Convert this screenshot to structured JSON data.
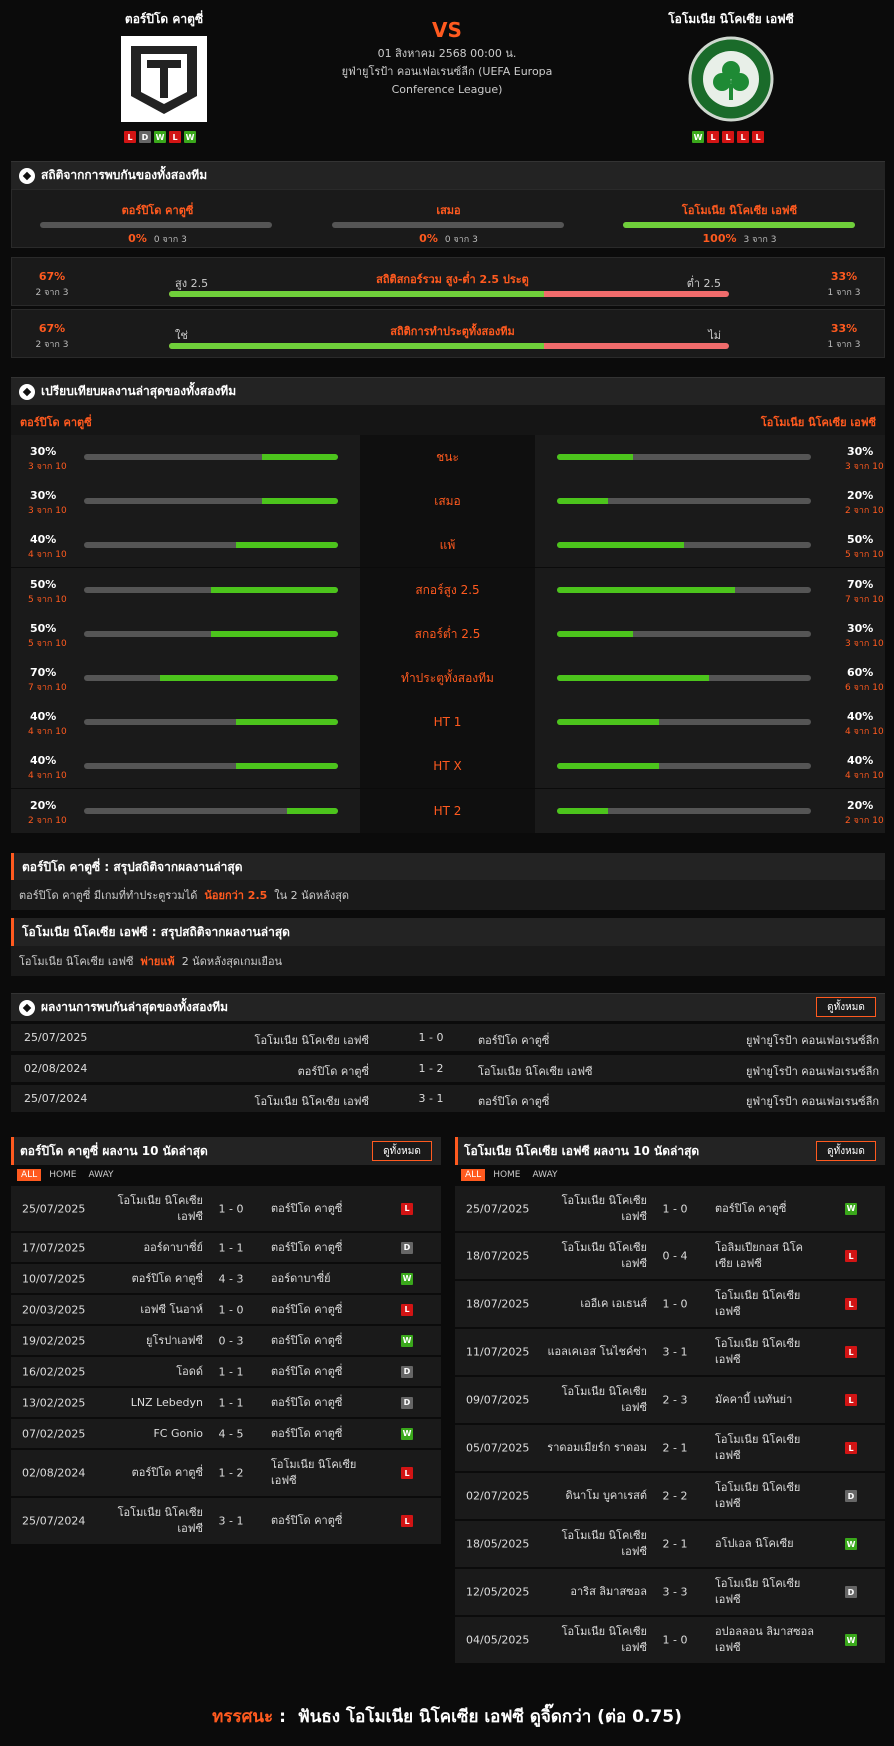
{
  "header": {
    "home_name": "ตอร์ปิโด คาตูซี่",
    "away_name": "โอโมเนีย นิโคเซีย เอฟซี",
    "vs": "VS",
    "date": "01 สิงหาคม 2568 00:00 น.",
    "league": "ยูฟ่ายูโรป้า คอนเฟอเรนซ์ลีก (UEFA Europa Conference League)",
    "home_form": [
      "L",
      "D",
      "W",
      "L",
      "W"
    ],
    "away_form": [
      "W",
      "L",
      "L",
      "L",
      "L"
    ]
  },
  "h2h_stats": {
    "title": "สถิติจากการพบกันของทั้งสองทีม",
    "cols": [
      {
        "label": "ตอร์ปิโด คาตูซี่",
        "pct": "0%",
        "count": "0 จาก 3",
        "fill": 0
      },
      {
        "label": "เสมอ",
        "pct": "0%",
        "count": "0 จาก 3",
        "fill": 0
      },
      {
        "label": "โอโมเนีย นิโคเซีย เอฟซี",
        "pct": "100%",
        "count": "3 จาก 3",
        "fill": 1
      }
    ],
    "ou": {
      "title": "สถิติสกอร์รวม สูง-ต่ำ 2.5 ประตู",
      "left_pct": "67%",
      "left_cnt": "2 จาก 3",
      "right_pct": "33%",
      "right_cnt": "1 จาก 3",
      "left_label": "สูง 2.5",
      "right_label": "ต่ำ 2.5",
      "fill": 0.67
    },
    "btts": {
      "title": "สถิติการทำประตูทั้งสองทีม",
      "left_pct": "67%",
      "left_cnt": "2 จาก 3",
      "right_pct": "33%",
      "right_cnt": "1 จาก 3",
      "left_label": "ใช่",
      "right_label": "ไม่",
      "fill": 0.67
    }
  },
  "compare": {
    "title": "เปรียบเทียบผลงานล่าสุดของทั้งสองทีม",
    "home": "ตอร์ปิโด คาตูซี่",
    "away": "โอโมเนีย นิโคเซีย เอฟซี",
    "rows": [
      {
        "label": "ชนะ",
        "hp": "30%",
        "hc": "3 จาก 10",
        "hf": 0.3,
        "ap": "30%",
        "ac": "3 จาก 10",
        "af": 0.3
      },
      {
        "label": "เสมอ",
        "hp": "30%",
        "hc": "3 จาก 10",
        "hf": 0.3,
        "ap": "20%",
        "ac": "2 จาก 10",
        "af": 0.2
      },
      {
        "label": "แพ้",
        "hp": "40%",
        "hc": "4 จาก 10",
        "hf": 0.4,
        "ap": "50%",
        "ac": "5 จาก 10",
        "af": 0.5
      },
      {
        "label": "สกอร์สูง 2.5",
        "hp": "50%",
        "hc": "5 จาก 10",
        "hf": 0.5,
        "ap": "70%",
        "ac": "7 จาก 10",
        "af": 0.7
      },
      {
        "label": "สกอร์ต่ำ 2.5",
        "hp": "50%",
        "hc": "5 จาก 10",
        "hf": 0.5,
        "ap": "30%",
        "ac": "3 จาก 10",
        "af": 0.3
      },
      {
        "label": "ทำประตูทั้งสองทีม",
        "hp": "70%",
        "hc": "7 จาก 10",
        "hf": 0.7,
        "ap": "60%",
        "ac": "6 จาก 10",
        "af": 0.6
      },
      {
        "label": "HT 1",
        "hp": "40%",
        "hc": "4 จาก 10",
        "hf": 0.4,
        "ap": "40%",
        "ac": "4 จาก 10",
        "af": 0.4
      },
      {
        "label": "HT X",
        "hp": "40%",
        "hc": "4 จาก 10",
        "hf": 0.4,
        "ap": "40%",
        "ac": "4 จาก 10",
        "af": 0.4
      },
      {
        "label": "HT 2",
        "hp": "20%",
        "hc": "2 จาก 10",
        "hf": 0.2,
        "ap": "20%",
        "ac": "2 จาก 10",
        "af": 0.2
      }
    ]
  },
  "summary": [
    {
      "title": "ตอร์ปิโด คาตูซี่ : สรุปสถิติจากผลงานล่าสุด",
      "pre": "ตอร์ปิโด คาตูซี่ มีเกมที่ทำประตูรวมได้",
      "hl": "น้อยกว่า 2.5",
      "post": "ใน 2 นัดหลังสุด"
    },
    {
      "title": "โอโมเนีย นิโคเซีย เอฟซี : สรุปสถิติจากผลงานล่าสุด",
      "pre": "โอโมเนีย นิโคเซีย เอฟซี",
      "hl": "พ่ายแพ้",
      "post": "2 นัดหลังสุดเกมเยือน"
    }
  ],
  "h2h_results": {
    "title": "ผลงานการพบกันล่าสุดของทั้งสองทีม",
    "view_all": "ดูทั้งหมด",
    "rows": [
      {
        "date": "25/07/2025",
        "home": "โอโมเนีย นิโคเซีย เอฟซี",
        "score": "1 - 0",
        "away": "ตอร์ปิโด คาตูซี่",
        "league": "ยูฟ่ายูโรป้า คอนเฟอเรนซ์ลีก"
      },
      {
        "date": "02/08/2024",
        "home": "ตอร์ปิโด คาตูซี่",
        "score": "1 - 2",
        "away": "โอโมเนีย นิโคเซีย เอฟซี",
        "league": "ยูฟ่ายูโรป้า คอนเฟอเรนซ์ลีก"
      },
      {
        "date": "25/07/2024",
        "home": "โอโมเนีย นิโคเซีย เอฟซี",
        "score": "3 - 1",
        "away": "ตอร์ปิโด คาตูซี่",
        "league": "ยูฟ่ายูโรป้า คอนเฟอเรนซ์ลีก"
      }
    ]
  },
  "home_last": {
    "title": "ตอร์ปิโด คาตูซี่ ผลงาน 10 นัดล่าสุด",
    "view_all": "ดูทั้งหมด",
    "tabs": [
      "ALL",
      "HOME",
      "AWAY"
    ],
    "rows": [
      {
        "date": "25/07/2025",
        "home": "โอโมเนีย นิโคเซีย เอฟซี",
        "score": "1 - 0",
        "away": "ตอร์ปิโด คาตูซี่",
        "r": "L"
      },
      {
        "date": "17/07/2025",
        "home": "ออร์ดาบาซี่ย์",
        "score": "1 - 1",
        "away": "ตอร์ปิโด คาตูซี่",
        "r": "D"
      },
      {
        "date": "10/07/2025",
        "home": "ตอร์ปิโด คาตูซี่",
        "score": "4 - 3",
        "away": "ออร์ดาบาซี่ย์",
        "r": "W"
      },
      {
        "date": "20/03/2025",
        "home": "เอฟซี โนอาห์",
        "score": "1 - 0",
        "away": "ตอร์ปิโด คาตูซี่",
        "r": "L"
      },
      {
        "date": "19/02/2025",
        "home": "ยูโรปาเอฟซี",
        "score": "0 - 3",
        "away": "ตอร์ปิโด คาตูซี่",
        "r": "W"
      },
      {
        "date": "16/02/2025",
        "home": "โอดด์",
        "score": "1 - 1",
        "away": "ตอร์ปิโด คาตูซี่",
        "r": "D"
      },
      {
        "date": "13/02/2025",
        "home": "LNZ Lebedyn",
        "score": "1 - 1",
        "away": "ตอร์ปิโด คาตูซี่",
        "r": "D"
      },
      {
        "date": "07/02/2025",
        "home": "FC Gonio",
        "score": "4 - 5",
        "away": "ตอร์ปิโด คาตูซี่",
        "r": "W"
      },
      {
        "date": "02/08/2024",
        "home": "ตอร์ปิโด คาตูซี่",
        "score": "1 - 2",
        "away": "โอโมเนีย นิโคเซีย เอฟซี",
        "r": "L"
      },
      {
        "date": "25/07/2024",
        "home": "โอโมเนีย นิโคเซีย เอฟซี",
        "score": "3 - 1",
        "away": "ตอร์ปิโด คาตูซี่",
        "r": "L"
      }
    ]
  },
  "away_last": {
    "title": "โอโมเนีย นิโคเซีย เอฟซี ผลงาน 10 นัดล่าสุด",
    "view_all": "ดูทั้งหมด",
    "tabs": [
      "ALL",
      "HOME",
      "AWAY"
    ],
    "rows": [
      {
        "date": "25/07/2025",
        "home": "โอโมเนีย นิโคเซีย เอฟซี",
        "score": "1 - 0",
        "away": "ตอร์ปิโด คาตูซี่",
        "r": "W"
      },
      {
        "date": "18/07/2025",
        "home": "โอโมเนีย นิโคเซีย เอฟซี",
        "score": "0 - 4",
        "away": "โอลิมเปียกอส นิโคเซีย เอฟซี",
        "r": "L"
      },
      {
        "date": "18/07/2025",
        "home": "เออีเค เอเธนส์",
        "score": "1 - 0",
        "away": "โอโมเนีย นิโคเซีย เอฟซี",
        "r": "L"
      },
      {
        "date": "11/07/2025",
        "home": "แอลเคเอส โนไชค์ซ่า",
        "score": "3 - 1",
        "away": "โอโมเนีย นิโคเซีย เอฟซี",
        "r": "L"
      },
      {
        "date": "09/07/2025",
        "home": "โอโมเนีย นิโคเซีย เอฟซี",
        "score": "2 - 3",
        "away": "มัคคาบี้ เนทันย่า",
        "r": "L"
      },
      {
        "date": "05/07/2025",
        "home": "ราดอมเมียร์ก ราดอม",
        "score": "2 - 1",
        "away": "โอโมเนีย นิโคเซีย เอฟซี",
        "r": "L"
      },
      {
        "date": "02/07/2025",
        "home": "ดินาโม บูคาเรสต์",
        "score": "2 - 2",
        "away": "โอโมเนีย นิโคเซีย เอฟซี",
        "r": "D"
      },
      {
        "date": "18/05/2025",
        "home": "โอโมเนีย นิโคเซีย เอฟซี",
        "score": "2 - 1",
        "away": "อโปเอล นิโคเซีย",
        "r": "W"
      },
      {
        "date": "12/05/2025",
        "home": "อาริส ลิมาสซอล",
        "score": "3 - 3",
        "away": "โอโมเนีย นิโคเซีย เอฟซี",
        "r": "D"
      },
      {
        "date": "04/05/2025",
        "home": "โอโมเนีย นิโคเซีย เอฟซี",
        "score": "1 - 0",
        "away": "อปอลลอน ลิมาสซอล เอฟซี",
        "r": "W"
      }
    ]
  },
  "verdict": {
    "label": "ทรรศนะ",
    "sep": ":",
    "text": "ฟันธง โอโมเนีย นิโคเซีย เอฟซี ดูจิ๊ดกว่า (ต่อ 0.75)"
  },
  "colors": {
    "accent": "#ff5a1f",
    "win": "#3aa81b",
    "loss": "#d21414",
    "draw": "#666666",
    "bar_fill": "#4cc41c"
  }
}
